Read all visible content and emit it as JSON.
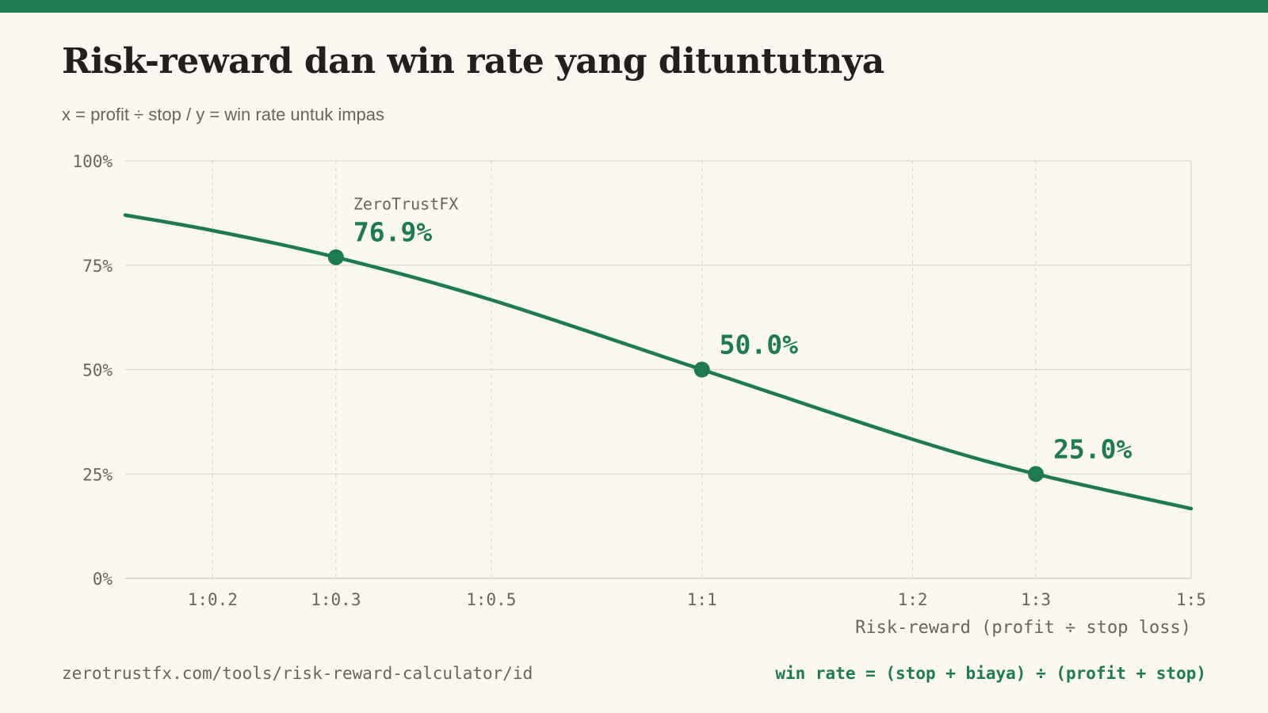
{
  "header": {
    "title": "Risk-reward dan win rate yang dituntutnya",
    "subtitle": "x = profit ÷ stop / y = win rate untuk impas"
  },
  "footer": {
    "url": "zerotrustfx.com/tools/risk-reward-calculator/id",
    "formula": "win rate = (stop + biaya) ÷ (profit + stop)"
  },
  "colors": {
    "accent": "#1f7a4f",
    "background": "#faf8f0",
    "text": "#231f1a",
    "muted": "#6b6459",
    "grid": "#ddd8c6"
  },
  "chart_data": {
    "type": "line",
    "xlabel": "Risk-reward (profit ÷ stop loss)",
    "ylabel": "",
    "x_scale": "log",
    "xlim": [
      0.15,
      5
    ],
    "ylim": [
      0,
      100
    ],
    "y_ticks": [
      0,
      25,
      50,
      75,
      100
    ],
    "y_tick_labels": [
      "0%",
      "25%",
      "50%",
      "75%",
      "100%"
    ],
    "x_ticks": [
      0.2,
      0.3,
      0.5,
      1,
      2,
      3,
      5
    ],
    "x_tick_labels": [
      "1:0.2",
      "1:0.3",
      "1:0.5",
      "1:1",
      "1:2",
      "1:3",
      "1:5"
    ],
    "grid": true,
    "series": [
      {
        "x": [
          0.15,
          0.2,
          0.3,
          0.5,
          1,
          2,
          3,
          5
        ],
        "y": [
          87.0,
          83.3,
          76.9,
          66.7,
          50.0,
          33.3,
          25.0,
          16.7
        ]
      }
    ],
    "highlights": [
      {
        "x": 0.3,
        "y": 76.9,
        "label": "76.9%",
        "note": "ZeroTrustFX"
      },
      {
        "x": 1,
        "y": 50.0,
        "label": "50.0%"
      },
      {
        "x": 3,
        "y": 25.0,
        "label": "25.0%"
      }
    ]
  }
}
